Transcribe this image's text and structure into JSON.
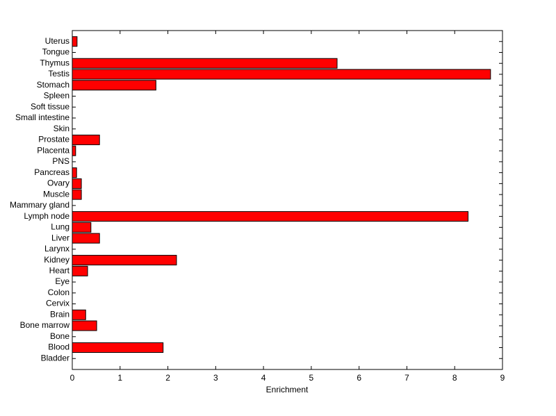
{
  "chart_data": {
    "type": "barh",
    "xlabel": "Enrichment",
    "categories": [
      "Bladder",
      "Blood",
      "Bone",
      "Bone marrow",
      "Brain",
      "Cervix",
      "Colon",
      "Eye",
      "Heart",
      "Kidney",
      "Larynx",
      "Liver",
      "Lung",
      "Lymph node",
      "Mammary gland",
      "Muscle",
      "Ovary",
      "Pancreas",
      "PNS",
      "Placenta",
      "Prostate",
      "Skin",
      "Small intestine",
      "Soft tissue",
      "Spleen",
      "Stomach",
      "Testis",
      "Thymus",
      "Tongue",
      "Uterus"
    ],
    "values": [
      0,
      1.9,
      0,
      0.51,
      0.28,
      0,
      0,
      0,
      0.32,
      2.18,
      0,
      0.57,
      0.39,
      8.28,
      0,
      0.19,
      0.19,
      0.09,
      0,
      0.07,
      0.57,
      0,
      0,
      0,
      0,
      1.75,
      8.75,
      5.54,
      0,
      0.1
    ],
    "color": "#ff0000",
    "xlim": [
      0,
      9
    ],
    "xticks": [
      0,
      1,
      2,
      3,
      4,
      5,
      6,
      7,
      8,
      9
    ],
    "grid": false
  }
}
